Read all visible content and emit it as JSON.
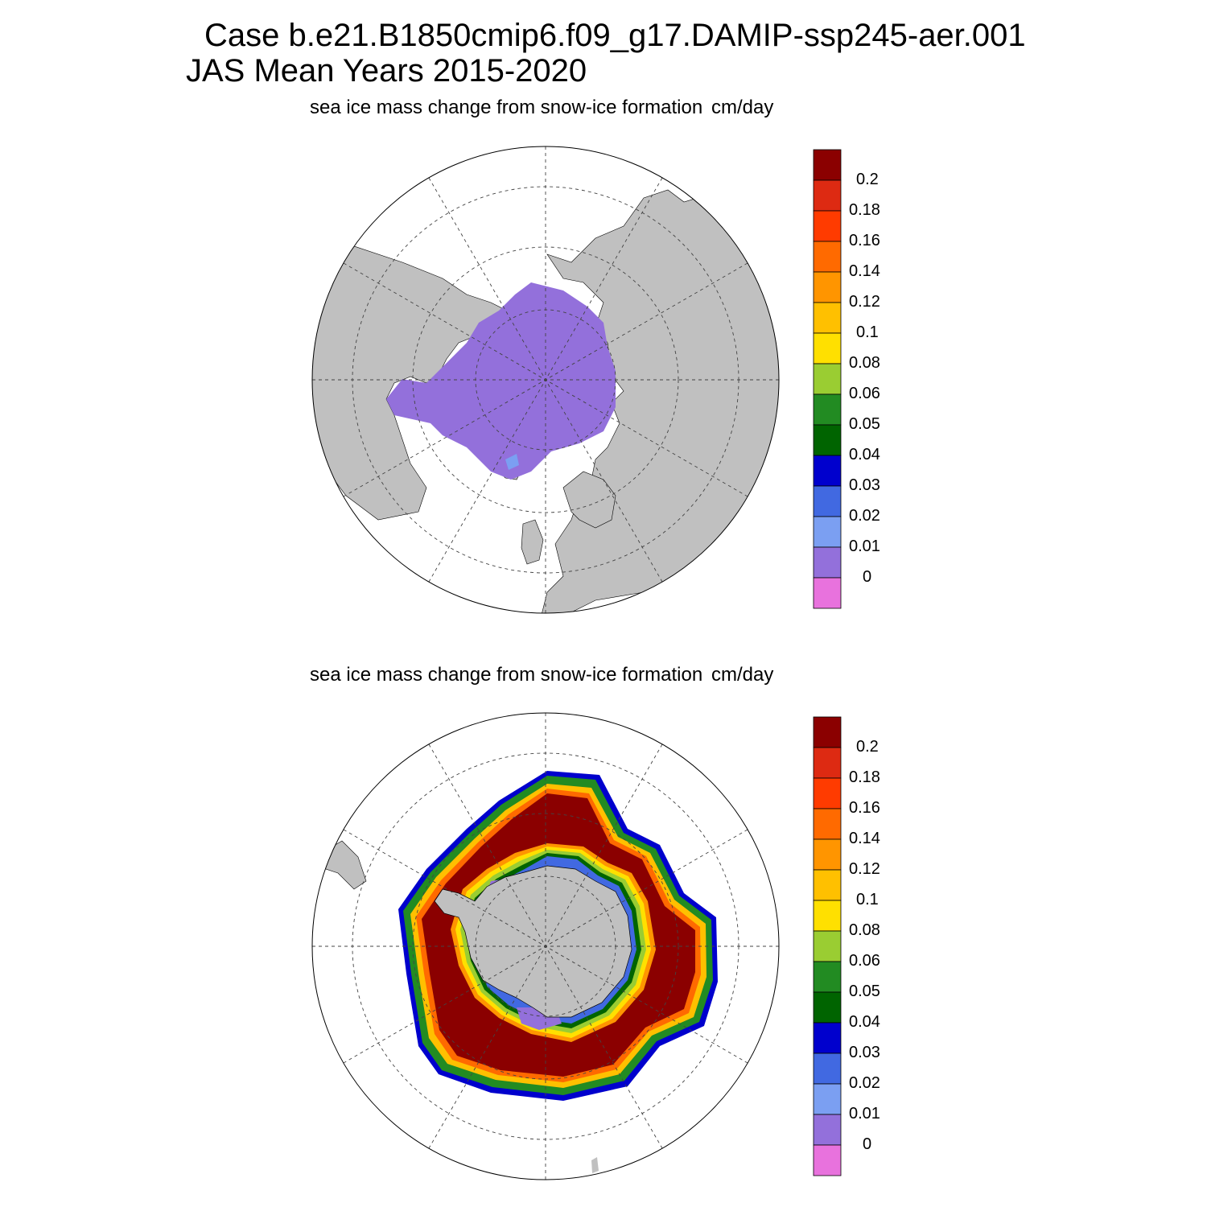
{
  "header": {
    "line1": "Case b.e21.B1850cmip6.f09_g17.DAMIP-ssp245-aer.001",
    "line2": "JAS Mean   Years 2015-2020"
  },
  "panels": [
    {
      "id": "north",
      "variable_label": "sea ice mass change from snow-ice formation",
      "units": "cm/day",
      "hemisphere": "Northern Hemisphere polar stereographic"
    },
    {
      "id": "south",
      "variable_label": "sea ice mass change from snow-ice formation",
      "units": "cm/day",
      "hemisphere": "Southern Hemisphere polar stereographic"
    }
  ],
  "colorbar": {
    "labels": [
      "0.2",
      "0.18",
      "0.16",
      "0.14",
      "0.12",
      "0.1",
      "0.08",
      "0.06",
      "0.05",
      "0.04",
      "0.03",
      "0.02",
      "0.01",
      "0"
    ],
    "colors": [
      "#8b0000",
      "#dd2a12",
      "#ff3b00",
      "#ff6a00",
      "#ff9500",
      "#ffc000",
      "#ffe000",
      "#9acd32",
      "#228b22",
      "#006400",
      "#0000cd",
      "#4169e1",
      "#7b9ff2",
      "#9370db",
      "#e872dd"
    ]
  },
  "colors": {
    "land": "#c0c0c0",
    "ocean": "#ffffff"
  }
}
